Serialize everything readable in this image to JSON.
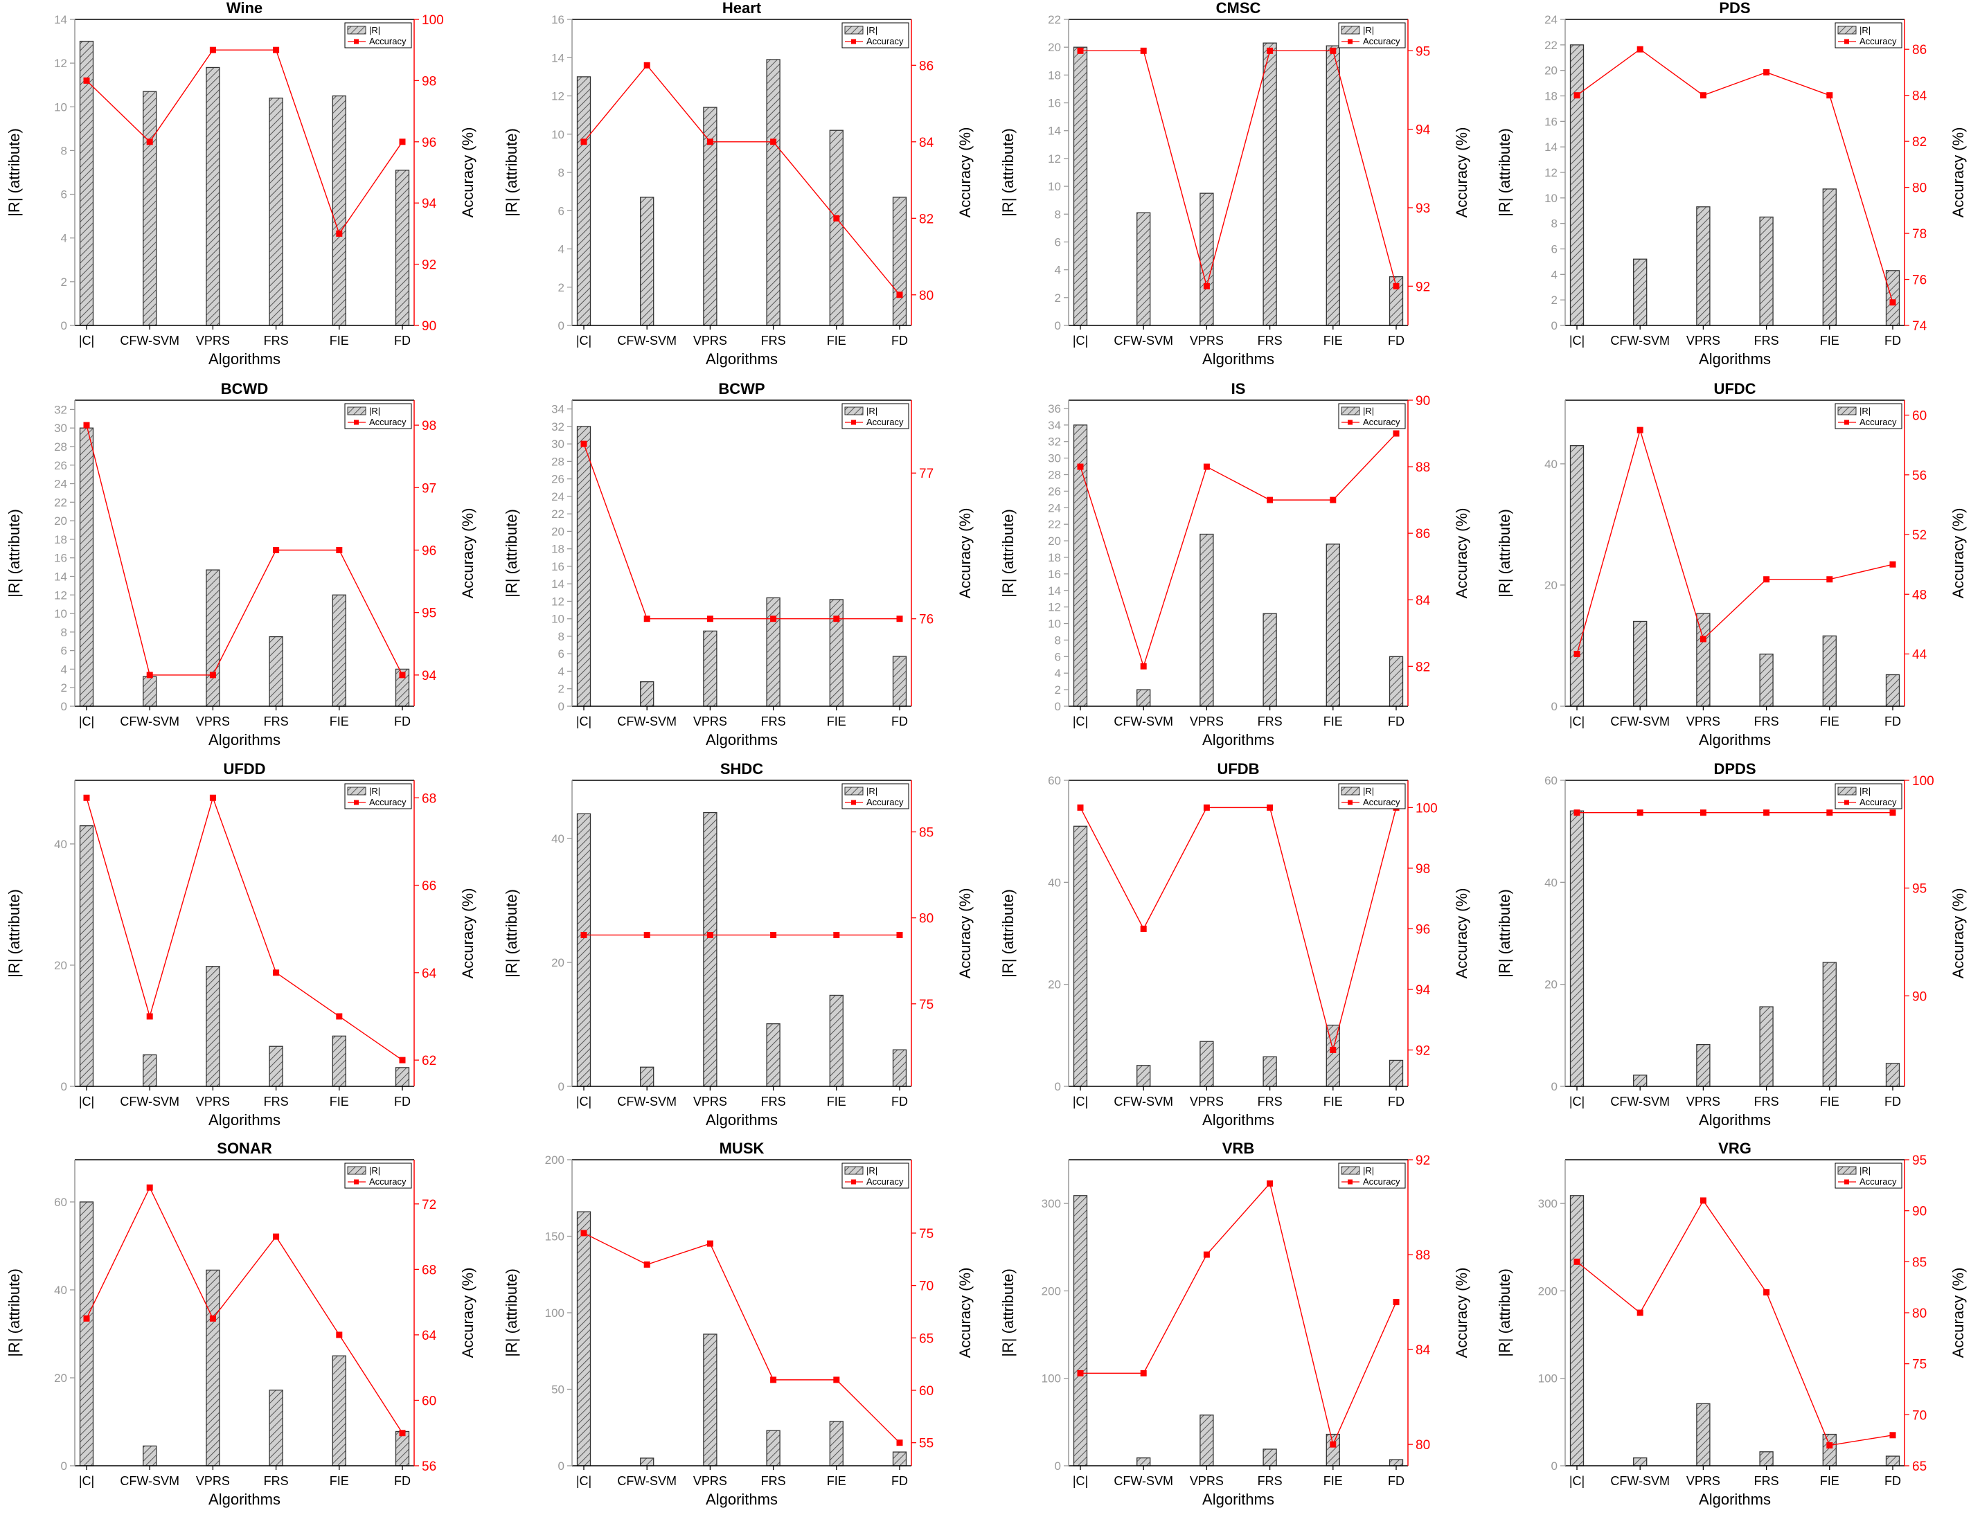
{
  "figure": {
    "x_axis_label": "Algorithms",
    "y_left_label": "|R| (attribute)",
    "y_right_label": "Accuracy (%)",
    "legend": {
      "bar": "|R|",
      "line": "Accuracy"
    },
    "colors": {
      "bar_fill": "#d0d0d0",
      "bar_hatch": "#555555",
      "bar_edge": "#333333",
      "line": "#ff0000",
      "left_axis": "#999999",
      "right_axis": "#ff0000"
    }
  },
  "chart_data": [
    {
      "type": "bar+line",
      "title": "Wine",
      "categories": [
        "|C|",
        "CFW-SVM",
        "VPRS",
        "FRS",
        "FIE",
        "FD"
      ],
      "bars": [
        13,
        10.7,
        11.8,
        10.4,
        10.5,
        7.1
      ],
      "left_ylim": [
        0,
        14
      ],
      "left_ticks": [
        0,
        2,
        4,
        6,
        8,
        10,
        12,
        14
      ],
      "accuracy": [
        98,
        96,
        99,
        99,
        93,
        96
      ],
      "right_ylim": [
        90,
        100
      ],
      "right_ticks": [
        90,
        92,
        94,
        96,
        98,
        100
      ]
    },
    {
      "type": "bar+line",
      "title": "Heart",
      "categories": [
        "|C|",
        "CFW-SVM",
        "VPRS",
        "FRS",
        "FIE",
        "FD"
      ],
      "bars": [
        13,
        6.7,
        11.4,
        13.9,
        10.2,
        6.7
      ],
      "left_ylim": [
        0,
        16
      ],
      "left_ticks": [
        0,
        2,
        4,
        6,
        8,
        10,
        12,
        14,
        16
      ],
      "accuracy": [
        84,
        86,
        84,
        84,
        82,
        80
      ],
      "right_ylim": [
        79.2,
        87.2
      ],
      "right_ticks": [
        80,
        82,
        84,
        86
      ]
    },
    {
      "type": "bar+line",
      "title": "CMSC",
      "categories": [
        "|C|",
        "CFW-SVM",
        "VPRS",
        "FRS",
        "FIE",
        "FD"
      ],
      "bars": [
        20,
        8.1,
        9.5,
        20.3,
        20.1,
        3.5
      ],
      "left_ylim": [
        0,
        22
      ],
      "left_ticks": [
        0,
        2,
        4,
        6,
        8,
        10,
        12,
        14,
        16,
        18,
        20,
        22
      ],
      "accuracy": [
        95,
        95,
        92,
        95,
        95,
        92
      ],
      "right_ylim": [
        91.5,
        95.4
      ],
      "right_ticks": [
        92,
        93,
        94,
        95
      ]
    },
    {
      "type": "bar+line",
      "title": "PDS",
      "categories": [
        "|C|",
        "CFW-SVM",
        "VPRS",
        "FRS",
        "FIE",
        "FD"
      ],
      "bars": [
        22,
        5.2,
        9.3,
        8.5,
        10.7,
        4.3
      ],
      "left_ylim": [
        0,
        24
      ],
      "left_ticks": [
        0,
        2,
        4,
        6,
        8,
        10,
        12,
        14,
        16,
        18,
        20,
        22,
        24
      ],
      "accuracy": [
        84,
        86,
        84,
        85,
        84,
        75
      ],
      "right_ylim": [
        74,
        87.3
      ],
      "right_ticks": [
        74,
        76,
        78,
        80,
        82,
        84,
        86
      ]
    },
    {
      "type": "bar+line",
      "title": "BCWD",
      "categories": [
        "|C|",
        "CFW-SVM",
        "VPRS",
        "FRS",
        "FIE",
        "FD"
      ],
      "bars": [
        30,
        3.2,
        14.7,
        7.5,
        12,
        4
      ],
      "left_ylim": [
        0,
        33
      ],
      "left_ticks": [
        0,
        2,
        4,
        6,
        8,
        10,
        12,
        14,
        16,
        18,
        20,
        22,
        24,
        26,
        28,
        30,
        32
      ],
      "accuracy": [
        98,
        94,
        94,
        96,
        96,
        94
      ],
      "right_ylim": [
        93.5,
        98.4
      ],
      "right_ticks": [
        94,
        95,
        96,
        97,
        98
      ]
    },
    {
      "type": "bar+line",
      "title": "BCWP",
      "categories": [
        "|C|",
        "CFW-SVM",
        "VPRS",
        "FRS",
        "FIE",
        "FD"
      ],
      "bars": [
        32,
        2.8,
        8.6,
        12.4,
        12.2,
        5.7
      ],
      "left_ylim": [
        0,
        35
      ],
      "left_ticks": [
        0,
        2,
        4,
        6,
        8,
        10,
        12,
        14,
        16,
        18,
        20,
        22,
        24,
        26,
        28,
        30,
        32,
        34
      ],
      "accuracy": [
        77.2,
        76,
        76,
        76,
        76,
        76
      ],
      "right_ylim": [
        75.4,
        77.5
      ],
      "right_ticks": [
        76,
        77
      ]
    },
    {
      "type": "bar+line",
      "title": "IS",
      "categories": [
        "|C|",
        "CFW-SVM",
        "VPRS",
        "FRS",
        "FIE",
        "FD"
      ],
      "bars": [
        34,
        2,
        20.8,
        11.2,
        19.6,
        6
      ],
      "left_ylim": [
        0,
        37
      ],
      "left_ticks": [
        0,
        2,
        4,
        6,
        8,
        10,
        12,
        14,
        16,
        18,
        20,
        22,
        24,
        26,
        28,
        30,
        32,
        34,
        36
      ],
      "accuracy": [
        88,
        82,
        88,
        87,
        87,
        89
      ],
      "right_ylim": [
        80.8,
        90
      ],
      "right_ticks": [
        82,
        84,
        86,
        88,
        90
      ]
    },
    {
      "type": "bar+line",
      "title": "UFDC",
      "categories": [
        "|C|",
        "CFW-SVM",
        "VPRS",
        "FRS",
        "FIE",
        "FD"
      ],
      "bars": [
        43,
        14,
        15.3,
        8.6,
        11.6,
        5.2
      ],
      "left_ylim": [
        0,
        50.5
      ],
      "left_ticks": [
        0,
        20,
        40
      ],
      "accuracy": [
        44,
        59,
        45,
        49,
        49,
        50
      ],
      "right_ylim": [
        40.5,
        61
      ],
      "right_ticks": [
        44,
        48,
        52,
        56,
        60
      ]
    },
    {
      "type": "bar+line",
      "title": "UFDD",
      "categories": [
        "|C|",
        "CFW-SVM",
        "VPRS",
        "FRS",
        "FIE",
        "FD"
      ],
      "bars": [
        43,
        5.2,
        19.8,
        6.6,
        8.3,
        3.1
      ],
      "left_ylim": [
        0,
        50.5
      ],
      "left_ticks": [
        0,
        20,
        40
      ],
      "accuracy": [
        68,
        63,
        68,
        64,
        63,
        62
      ],
      "right_ylim": [
        61.4,
        68.4
      ],
      "right_ticks": [
        62,
        64,
        66,
        68
      ]
    },
    {
      "type": "bar+line",
      "title": "SHDC",
      "categories": [
        "|C|",
        "CFW-SVM",
        "VPRS",
        "FRS",
        "FIE",
        "FD"
      ],
      "bars": [
        44,
        3.1,
        44.2,
        10.1,
        14.7,
        5.9
      ],
      "left_ylim": [
        0,
        49.4
      ],
      "left_ticks": [
        0,
        20,
        40
      ],
      "accuracy": [
        79,
        79,
        79,
        79,
        79,
        79
      ],
      "right_ylim": [
        70.2,
        88
      ],
      "right_ticks": [
        75,
        80,
        85
      ]
    },
    {
      "type": "bar+line",
      "title": "UFDB",
      "categories": [
        "|C|",
        "CFW-SVM",
        "VPRS",
        "FRS",
        "FIE",
        "FD"
      ],
      "bars": [
        51,
        4.1,
        8.8,
        5.8,
        12,
        5.1
      ],
      "left_ylim": [
        0,
        60
      ],
      "left_ticks": [
        0,
        20,
        40,
        60
      ],
      "accuracy": [
        100,
        96,
        100,
        100,
        92,
        100
      ],
      "right_ylim": [
        90.8,
        100.9
      ],
      "right_ticks": [
        92,
        94,
        96,
        98,
        100
      ]
    },
    {
      "type": "bar+line",
      "title": "DPDS",
      "categories": [
        "|C|",
        "CFW-SVM",
        "VPRS",
        "FRS",
        "FIE",
        "FD"
      ],
      "bars": [
        54,
        2.2,
        8.2,
        15.6,
        24.3,
        4.5
      ],
      "left_ylim": [
        0,
        60
      ],
      "left_ticks": [
        0,
        20,
        40,
        60
      ],
      "accuracy": [
        98.5,
        98.5,
        98.5,
        98.5,
        98.5,
        98.5
      ],
      "right_ylim": [
        85.8,
        100
      ],
      "right_ticks": [
        90,
        95,
        100
      ]
    },
    {
      "type": "bar+line",
      "title": "SONAR",
      "categories": [
        "|C|",
        "CFW-SVM",
        "VPRS",
        "FRS",
        "FIE",
        "FD"
      ],
      "bars": [
        60,
        4.5,
        44.5,
        17.2,
        25,
        7.8
      ],
      "left_ylim": [
        0,
        69.6
      ],
      "left_ticks": [
        0,
        20,
        40,
        60
      ],
      "accuracy": [
        65,
        73,
        65,
        70,
        64,
        58
      ],
      "right_ylim": [
        56,
        74.7
      ],
      "right_ticks": [
        56,
        60,
        64,
        68,
        72
      ]
    },
    {
      "type": "bar+line",
      "title": "MUSK",
      "categories": [
        "|C|",
        "CFW-SVM",
        "VPRS",
        "FRS",
        "FIE",
        "FD"
      ],
      "bars": [
        166,
        5,
        86,
        23,
        29,
        9
      ],
      "left_ylim": [
        0,
        200
      ],
      "left_ticks": [
        0,
        50,
        100,
        150,
        200
      ],
      "accuracy": [
        75,
        72,
        74,
        61,
        61,
        55
      ],
      "right_ylim": [
        52.8,
        82
      ],
      "right_ticks": [
        55,
        60,
        65,
        70,
        75
      ]
    },
    {
      "type": "bar+line",
      "title": "VRB",
      "categories": [
        "|C|",
        "CFW-SVM",
        "VPRS",
        "FRS",
        "FIE",
        "FD"
      ],
      "bars": [
        309,
        9,
        58,
        19,
        36,
        7
      ],
      "left_ylim": [
        0,
        350
      ],
      "left_ticks": [
        0,
        100,
        200,
        300
      ],
      "accuracy": [
        83,
        83,
        88,
        91,
        80,
        86
      ],
      "right_ylim": [
        79.1,
        92
      ],
      "right_ticks": [
        80,
        84,
        88,
        92
      ]
    },
    {
      "type": "bar+line",
      "title": "VRG",
      "categories": [
        "|C|",
        "CFW-SVM",
        "VPRS",
        "FRS",
        "FIE",
        "FD"
      ],
      "bars": [
        309,
        9,
        71,
        16,
        36,
        11
      ],
      "left_ylim": [
        0,
        350
      ],
      "left_ticks": [
        0,
        100,
        200,
        300
      ],
      "accuracy": [
        85,
        80,
        91,
        82,
        67,
        68
      ],
      "right_ylim": [
        65,
        95
      ],
      "right_ticks": [
        65,
        70,
        75,
        80,
        85,
        90,
        95
      ]
    }
  ]
}
